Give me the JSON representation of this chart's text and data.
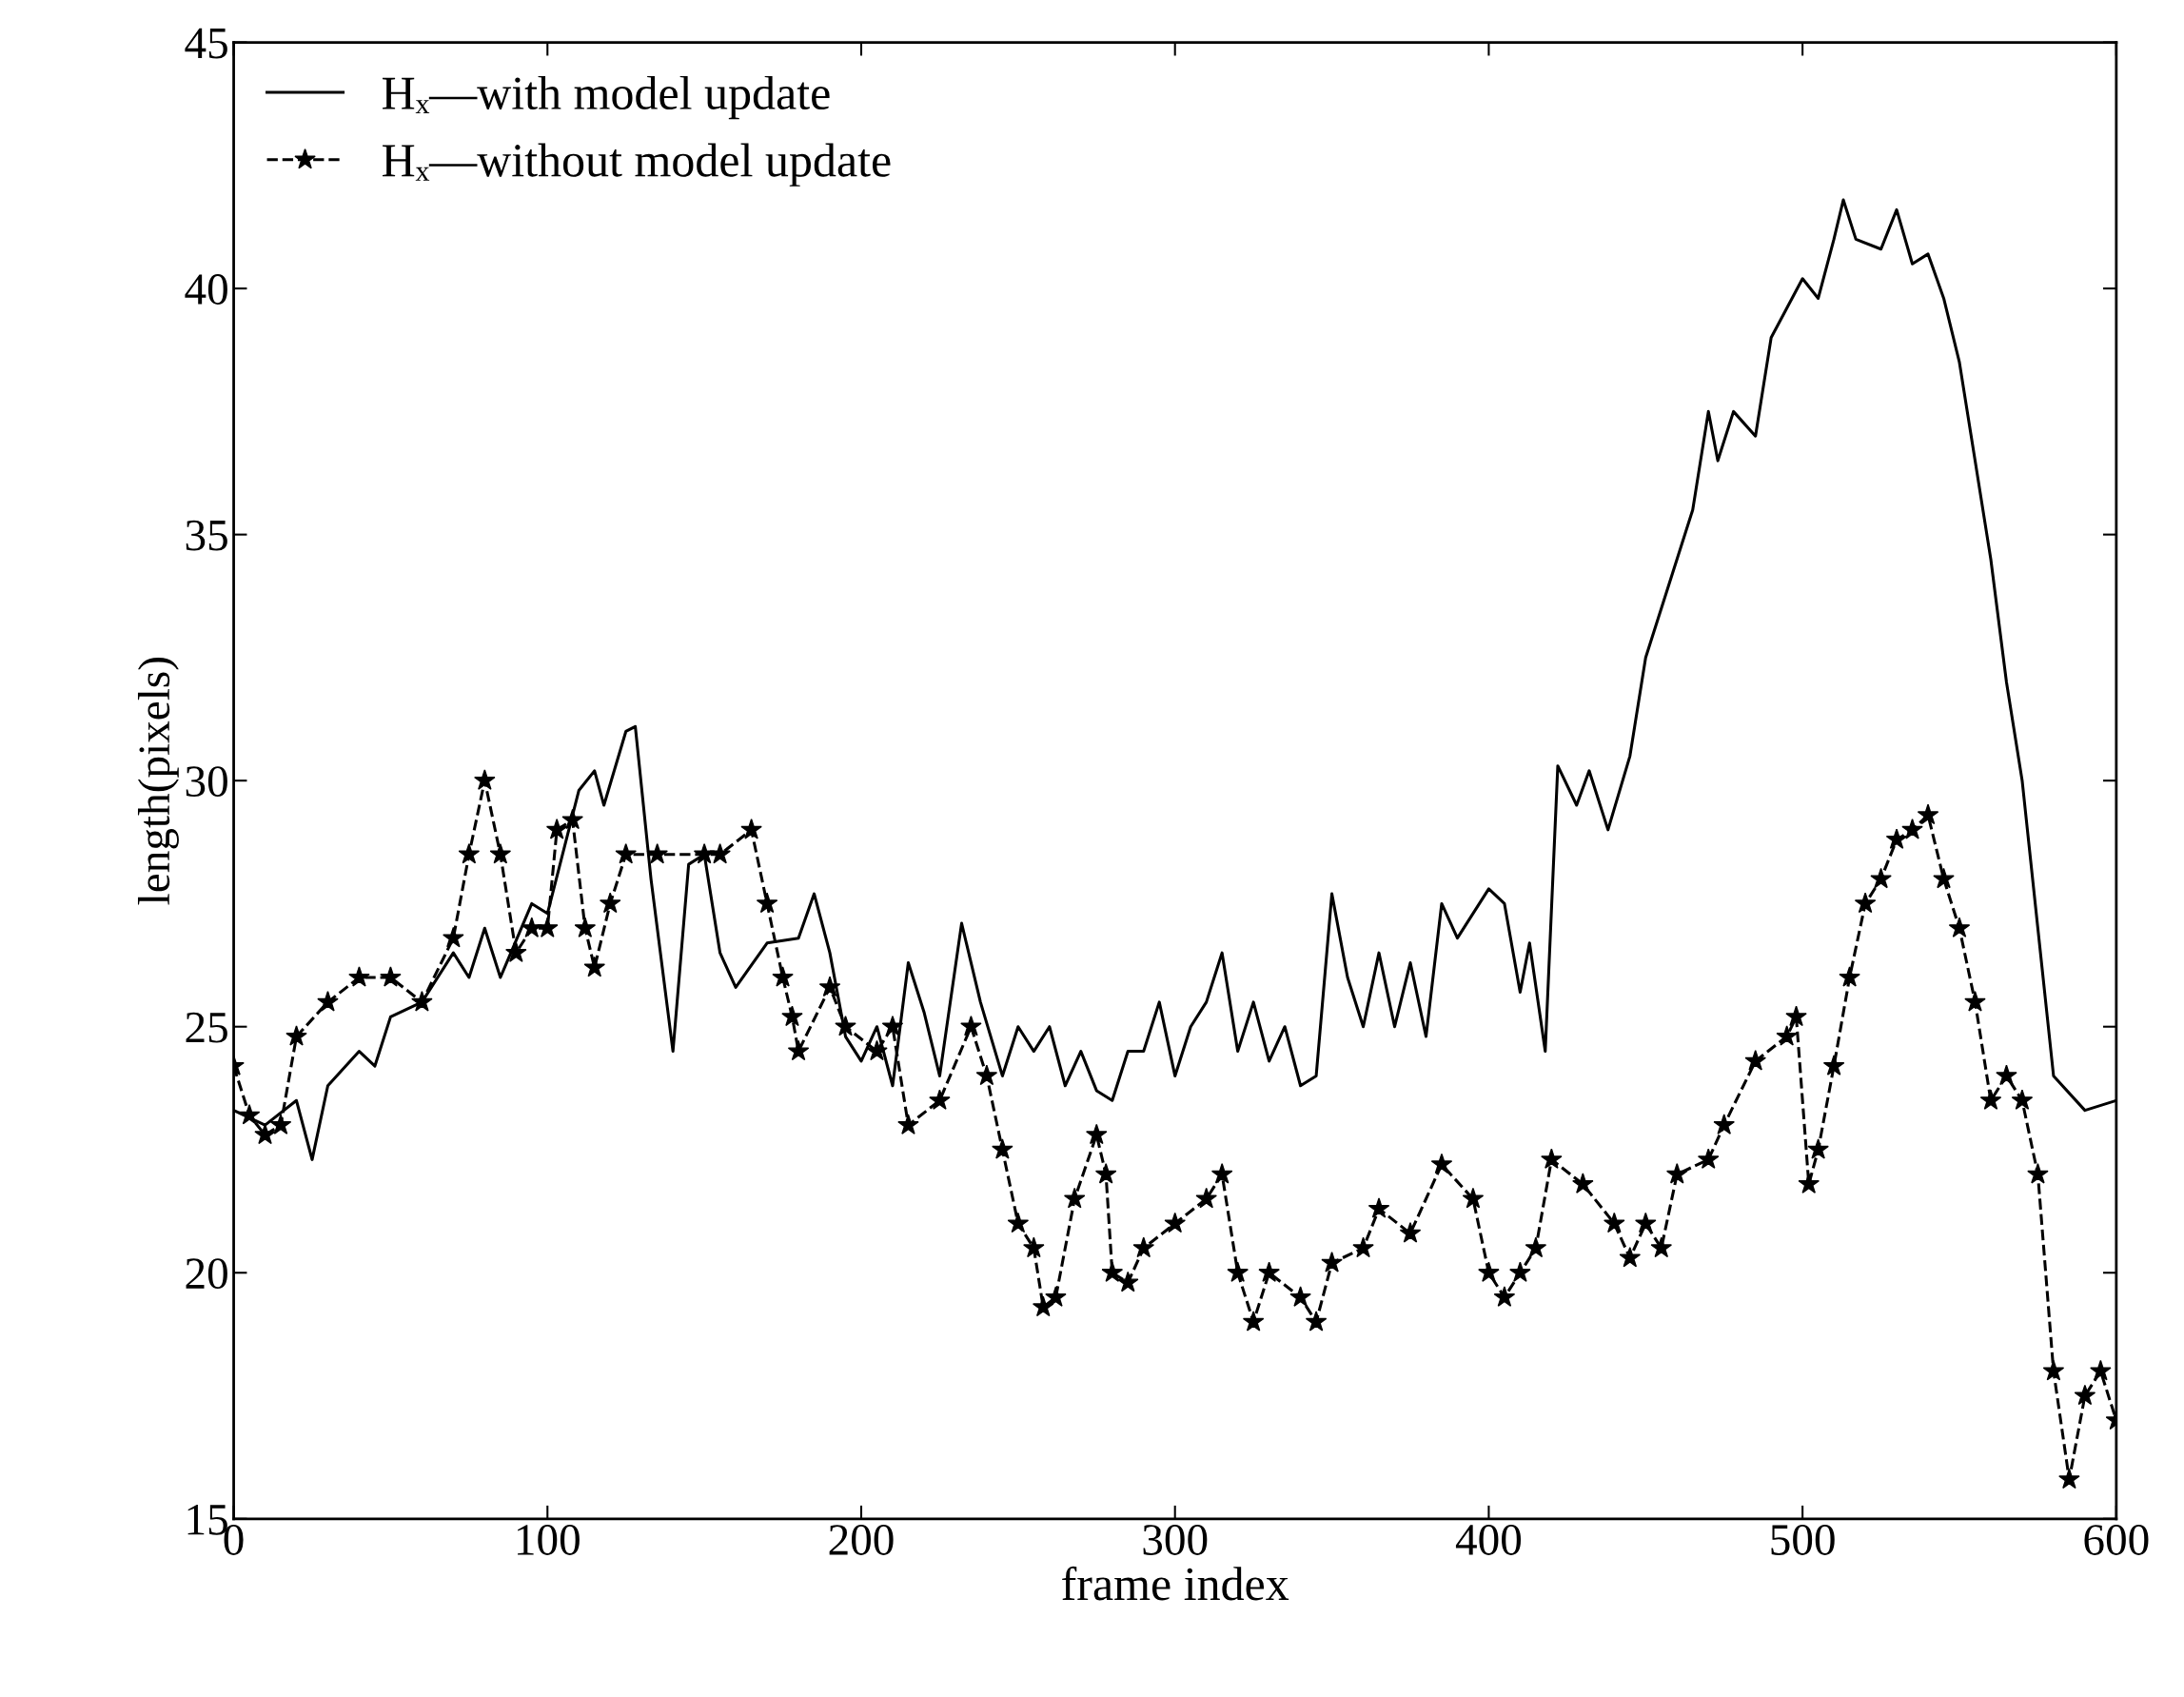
{
  "chart_data": {
    "type": "line",
    "xlabel": "frame index",
    "ylabel": "length(pixels)",
    "xlim": [
      0,
      600
    ],
    "ylim": [
      15,
      45
    ],
    "xticks": [
      0,
      100,
      200,
      300,
      400,
      500,
      600
    ],
    "yticks": [
      15,
      20,
      25,
      30,
      35,
      40,
      45
    ],
    "grid": false,
    "legend": "top left",
    "series": [
      {
        "name": "Hₓ—with model update",
        "color": "#000000",
        "marker": "none",
        "line_style": "solid",
        "x": [
          0,
          10,
          20,
          25,
          30,
          40,
          45,
          50,
          60,
          70,
          75,
          80,
          85,
          95,
          100,
          110,
          115,
          118,
          125,
          128,
          133,
          140,
          145,
          150,
          155,
          160,
          170,
          180,
          185,
          190,
          195,
          200,
          205,
          210,
          215,
          220,
          225,
          232,
          238,
          245,
          250,
          255,
          260,
          265,
          270,
          275,
          280,
          285,
          290,
          295,
          300,
          305,
          310,
          315,
          320,
          325,
          330,
          335,
          340,
          345,
          350,
          355,
          360,
          365,
          370,
          375,
          380,
          385,
          390,
          400,
          405,
          410,
          413,
          418,
          422,
          428,
          432,
          438,
          445,
          450,
          460,
          465,
          470,
          473,
          478,
          485,
          490,
          500,
          505,
          510,
          513,
          517,
          525,
          530,
          535,
          540,
          545,
          550,
          555,
          560,
          565,
          570,
          575,
          580,
          590,
          600
        ],
        "values": [
          23.3,
          23.0,
          23.5,
          22.3,
          23.8,
          24.5,
          24.2,
          25.2,
          25.5,
          26.5,
          26.0,
          27.0,
          26.0,
          27.5,
          27.3,
          29.8,
          30.2,
          29.5,
          31.0,
          31.1,
          28.0,
          24.5,
          28.3,
          28.5,
          26.5,
          25.8,
          26.7,
          26.8,
          27.7,
          26.5,
          24.8,
          24.3,
          25.0,
          23.8,
          26.3,
          25.3,
          24.0,
          27.1,
          25.5,
          24.0,
          25.0,
          24.5,
          25.0,
          23.8,
          24.5,
          23.7,
          23.5,
          24.5,
          24.5,
          25.5,
          24.0,
          25.0,
          25.5,
          26.5,
          24.5,
          25.5,
          24.3,
          25.0,
          23.8,
          24.0,
          27.7,
          26.0,
          25.0,
          26.5,
          25.0,
          26.3,
          24.8,
          27.5,
          26.8,
          27.8,
          27.5,
          25.7,
          26.7,
          24.5,
          30.3,
          29.5,
          30.2,
          29.0,
          30.5,
          32.5,
          34.5,
          35.5,
          37.5,
          36.5,
          37.5,
          37.0,
          39.0,
          40.2,
          39.8,
          41.0,
          41.8,
          41.0,
          40.8,
          41.6,
          40.5,
          40.7,
          39.8,
          38.5,
          36.5,
          34.5,
          32.0,
          30.0,
          27.0,
          24.0,
          23.3,
          23.5
        ]
      },
      {
        "name": "Hₓ—without model update",
        "color": "#000000",
        "marker": "star",
        "line_style": "dashed",
        "x": [
          0,
          5,
          10,
          15,
          20,
          30,
          40,
          50,
          60,
          70,
          75,
          80,
          85,
          90,
          95,
          100,
          103,
          108,
          112,
          115,
          120,
          125,
          135,
          150,
          155,
          165,
          170,
          175,
          178,
          180,
          190,
          195,
          205,
          210,
          215,
          225,
          235,
          240,
          245,
          250,
          255,
          258,
          262,
          268,
          275,
          278,
          280,
          285,
          290,
          300,
          310,
          315,
          320,
          325,
          330,
          340,
          345,
          350,
          360,
          365,
          375,
          385,
          395,
          400,
          405,
          410,
          415,
          420,
          430,
          440,
          445,
          450,
          455,
          460,
          470,
          475,
          485,
          495,
          498,
          502,
          505,
          510,
          515,
          520,
          525,
          530,
          535,
          540,
          545,
          550,
          555,
          560,
          565,
          570,
          575,
          580,
          585,
          590,
          595,
          600
        ],
        "values": [
          24.2,
          23.2,
          22.8,
          23.0,
          24.8,
          25.5,
          26.0,
          26.0,
          25.5,
          26.8,
          28.5,
          30.0,
          28.5,
          26.5,
          27.0,
          27.0,
          29.0,
          29.2,
          27.0,
          26.2,
          27.5,
          28.5,
          28.5,
          28.5,
          28.5,
          29.0,
          27.5,
          26.0,
          25.2,
          24.5,
          25.8,
          25.0,
          24.5,
          25.0,
          23.0,
          23.5,
          25.0,
          24.0,
          22.5,
          21.0,
          20.5,
          19.3,
          19.5,
          21.5,
          22.8,
          22.0,
          20.0,
          19.8,
          20.5,
          21.0,
          21.5,
          22.0,
          20.0,
          19.0,
          20.0,
          19.5,
          19.0,
          20.2,
          20.5,
          21.3,
          20.8,
          22.2,
          21.5,
          20.0,
          19.5,
          20.0,
          20.5,
          22.3,
          21.8,
          21.0,
          20.3,
          21.0,
          20.5,
          22.0,
          22.3,
          23.0,
          24.3,
          24.8,
          25.2,
          21.8,
          22.5,
          24.2,
          26.0,
          27.5,
          28.0,
          28.8,
          29.0,
          29.3,
          28.0,
          27.0,
          25.5,
          23.5,
          24.0,
          23.5,
          22.0,
          18.0,
          15.8,
          17.5,
          18.0,
          17.0
        ]
      }
    ]
  }
}
